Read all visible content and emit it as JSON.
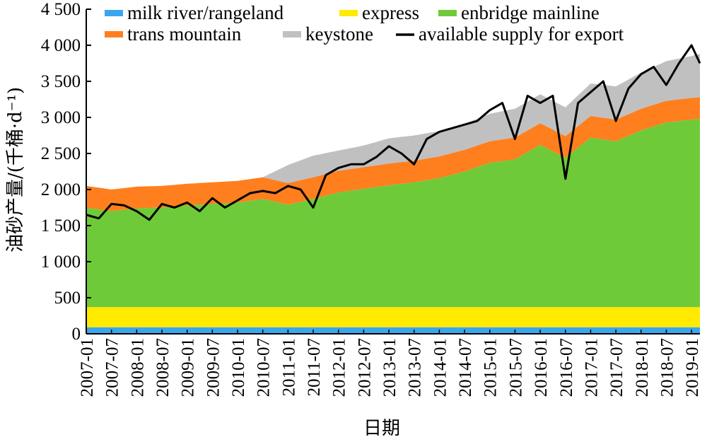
{
  "chart_data": {
    "type": "area",
    "title": "",
    "xlabel": "日期",
    "ylabel": "油砂产量/(千桶·d⁻¹)",
    "ylim": [
      0,
      4500
    ],
    "yticks": [
      0,
      500,
      1000,
      1500,
      2000,
      2500,
      3000,
      3500,
      4000,
      4500
    ],
    "ytick_labels": [
      "0",
      "500",
      "1 000",
      "1 500",
      "2 000",
      "2 500",
      "3 000",
      "3 500",
      "4 000",
      "4 500"
    ],
    "xlim": [
      "2007-01",
      "2019-03"
    ],
    "xtick_labels": [
      "2007-01",
      "2007-07",
      "2008-01",
      "2008-07",
      "2009-01",
      "2009-07",
      "2010-01",
      "2010-07",
      "2011-01",
      "2011-07",
      "2012-01",
      "2012-07",
      "2013-01",
      "2013-07",
      "2014-01",
      "2014-07",
      "2015-01",
      "2015-07",
      "2016-01",
      "2016-07",
      "2017-01",
      "2017-07",
      "2018-01",
      "2018-07",
      "2019-01"
    ],
    "grid": false,
    "legend_position": "top",
    "stacked_series": [
      {
        "name": "milk river/rangeland",
        "color": "#3aa6ee",
        "x": [
          "2007-01",
          "2019-03"
        ],
        "values": [
          90,
          90
        ]
      },
      {
        "name": "express",
        "color": "#ffea00",
        "x": [
          "2007-01",
          "2019-03"
        ],
        "values": [
          280,
          280
        ]
      },
      {
        "name": "enbridge mainline",
        "color": "#6fca3a",
        "x": [
          "2007-01",
          "2007-07",
          "2008-01",
          "2008-07",
          "2009-01",
          "2009-07",
          "2010-01",
          "2010-07",
          "2011-01",
          "2011-07",
          "2012-01",
          "2012-07",
          "2013-01",
          "2013-07",
          "2014-01",
          "2014-07",
          "2015-01",
          "2015-07",
          "2016-01",
          "2016-07",
          "2017-01",
          "2017-07",
          "2018-01",
          "2018-07",
          "2019-01",
          "2019-03"
        ],
        "values": [
          1380,
          1330,
          1370,
          1380,
          1410,
          1430,
          1450,
          1500,
          1420,
          1500,
          1590,
          1640,
          1690,
          1730,
          1790,
          1880,
          2000,
          2050,
          2250,
          2070,
          2350,
          2300,
          2450,
          2560,
          2600,
          2610
        ]
      },
      {
        "name": "trans mountain",
        "color": "#ff7f1e",
        "x": [
          "2007-01",
          "2007-07",
          "2008-01",
          "2008-07",
          "2009-01",
          "2009-07",
          "2010-01",
          "2010-07",
          "2011-01",
          "2011-07",
          "2012-01",
          "2012-07",
          "2013-01",
          "2013-07",
          "2014-01",
          "2014-07",
          "2015-01",
          "2015-07",
          "2016-01",
          "2016-07",
          "2017-01",
          "2017-07",
          "2018-01",
          "2018-07",
          "2019-01",
          "2019-03"
        ],
        "values": [
          300,
          300,
          300,
          300,
          300,
          300,
          300,
          300,
          300,
          300,
          300,
          300,
          300,
          300,
          300,
          300,
          300,
          300,
          300,
          300,
          300,
          300,
          300,
          300,
          300,
          300
        ]
      },
      {
        "name": "keystone",
        "color": "#c0c0c0",
        "x": [
          "2007-01",
          "2007-07",
          "2008-01",
          "2008-07",
          "2009-01",
          "2009-07",
          "2010-01",
          "2010-07",
          "2011-01",
          "2011-07",
          "2012-01",
          "2012-07",
          "2013-01",
          "2013-07",
          "2014-01",
          "2014-07",
          "2015-01",
          "2015-07",
          "2016-01",
          "2016-07",
          "2017-01",
          "2017-07",
          "2018-01",
          "2018-07",
          "2019-01",
          "2019-03"
        ],
        "values": [
          0,
          0,
          0,
          0,
          0,
          0,
          0,
          0,
          250,
          300,
          280,
          300,
          350,
          350,
          350,
          360,
          380,
          400,
          400,
          400,
          450,
          460,
          500,
          550,
          580,
          600
        ]
      }
    ],
    "line_series": {
      "name": "available supply for export",
      "color": "#000000",
      "x": [
        "2007-01",
        "2007-04",
        "2007-07",
        "2007-10",
        "2008-01",
        "2008-04",
        "2008-07",
        "2008-10",
        "2009-01",
        "2009-04",
        "2009-07",
        "2009-10",
        "2010-01",
        "2010-04",
        "2010-07",
        "2010-10",
        "2011-01",
        "2011-04",
        "2011-07",
        "2011-10",
        "2012-01",
        "2012-04",
        "2012-07",
        "2012-10",
        "2013-01",
        "2013-04",
        "2013-07",
        "2013-10",
        "2014-01",
        "2014-04",
        "2014-07",
        "2014-10",
        "2015-01",
        "2015-04",
        "2015-07",
        "2015-10",
        "2016-01",
        "2016-04",
        "2016-07",
        "2016-10",
        "2017-01",
        "2017-04",
        "2017-07",
        "2017-10",
        "2018-01",
        "2018-04",
        "2018-07",
        "2018-10",
        "2019-01",
        "2019-03"
      ],
      "values": [
        1650,
        1600,
        1800,
        1780,
        1700,
        1580,
        1800,
        1750,
        1820,
        1700,
        1880,
        1750,
        1850,
        1950,
        1980,
        1950,
        2050,
        2000,
        1750,
        2200,
        2300,
        2350,
        2350,
        2450,
        2600,
        2500,
        2350,
        2700,
        2800,
        2850,
        2900,
        2950,
        3100,
        3200,
        2700,
        3300,
        3200,
        3300,
        2150,
        3200,
        3350,
        3500,
        2950,
        3400,
        3600,
        3700,
        3450,
        3750,
        4000,
        3750
      ]
    }
  }
}
